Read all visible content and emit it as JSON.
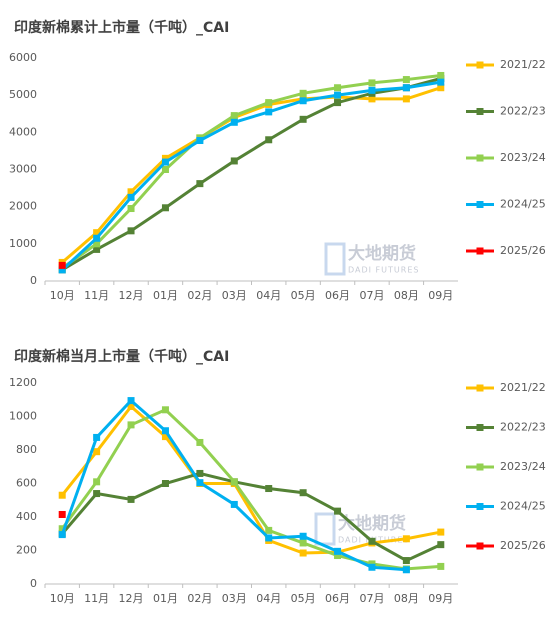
{
  "chart_data": [
    {
      "type": "line",
      "title": "印度新棉累计上市量（千吨）_CAI",
      "categories": [
        "10月",
        "11月",
        "12月",
        "01月",
        "02月",
        "03月",
        "04月",
        "05月",
        "06月",
        "07月",
        "08月",
        "09月"
      ],
      "ylim": [
        0,
        6000
      ],
      "yticks": [
        0,
        1000,
        2000,
        3000,
        4000,
        5000,
        6000
      ],
      "watermark": "大地期货",
      "watermark_sub": "DADI FUTURES",
      "series": [
        {
          "name": "2021/22",
          "color": "#ffc000",
          "values": [
            500,
            1300,
            2400,
            3300,
            3850,
            4400,
            4750,
            4900,
            4950,
            4900,
            4900,
            5200
          ]
        },
        {
          "name": "2022/23",
          "color": "#548235",
          "values": [
            300,
            850,
            1350,
            1970,
            2620,
            3230,
            3800,
            4350,
            4800,
            5050,
            5200,
            5450
          ]
        },
        {
          "name": "2023/24",
          "color": "#92d050",
          "values": [
            350,
            1000,
            1950,
            3000,
            3850,
            4450,
            4800,
            5050,
            5200,
            5330,
            5420,
            5530
          ]
        },
        {
          "name": "2024/25",
          "color": "#00b0f0",
          "values": [
            300,
            1150,
            2250,
            3200,
            3780,
            4270,
            4550,
            4850,
            5000,
            5130,
            5200,
            5350
          ]
        },
        {
          "name": "2025/26",
          "color": "#ff0000",
          "values": [
            420,
            null,
            null,
            null,
            null,
            null,
            null,
            null,
            null,
            null,
            null,
            null
          ]
        }
      ]
    },
    {
      "type": "line",
      "title": "印度新棉当月上市量（千吨）_CAI",
      "categories": [
        "10月",
        "11月",
        "12月",
        "01月",
        "02月",
        "03月",
        "04月",
        "05月",
        "06月",
        "07月",
        "08月",
        "09月"
      ],
      "ylim": [
        0,
        1200
      ],
      "yticks": [
        0,
        200,
        400,
        600,
        800,
        1000,
        1200
      ],
      "watermark": "大地期货",
      "watermark_sub": "DADI FUTURES",
      "series": [
        {
          "name": "2021/22",
          "color": "#ffc000",
          "values": [
            530,
            790,
            1060,
            880,
            600,
            600,
            260,
            185,
            190,
            245,
            270,
            310
          ]
        },
        {
          "name": "2022/23",
          "color": "#548235",
          "values": [
            300,
            540,
            505,
            600,
            660,
            610,
            570,
            545,
            435,
            255,
            140,
            235
          ]
        },
        {
          "name": "2023/24",
          "color": "#92d050",
          "values": [
            330,
            610,
            950,
            1040,
            845,
            610,
            320,
            245,
            170,
            120,
            90,
            105
          ]
        },
        {
          "name": "2024/25",
          "color": "#00b0f0",
          "values": [
            295,
            875,
            1095,
            915,
            605,
            475,
            275,
            285,
            195,
            100,
            85,
            null
          ]
        },
        {
          "name": "2025/26",
          "color": "#ff0000",
          "values": [
            415,
            null,
            null,
            null,
            null,
            null,
            null,
            null,
            null,
            null,
            null,
            null
          ]
        }
      ]
    }
  ]
}
